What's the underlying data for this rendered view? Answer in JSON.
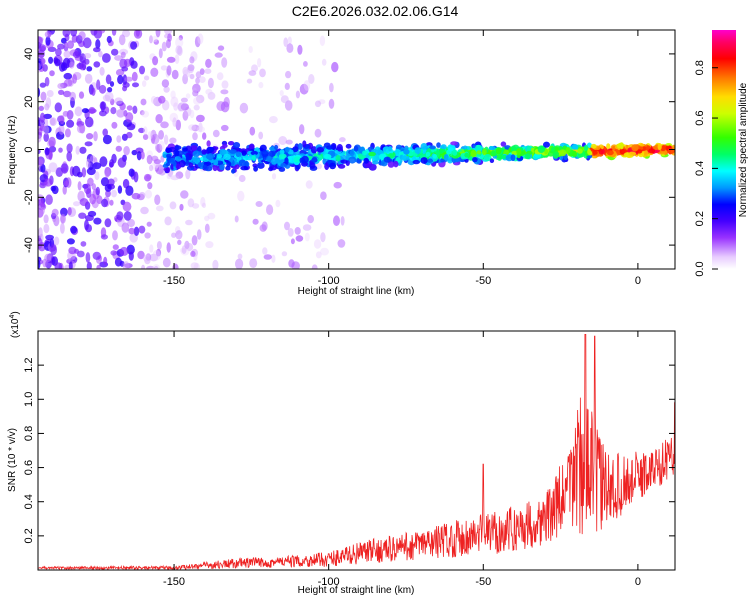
{
  "title": "C2E6.2026.032.02.06.G14",
  "colors": {
    "snr_line": "#ee2222",
    "axes": "#000000",
    "background": "#ffffff",
    "spectrogram_palette": [
      "#ffffff",
      "#e8ccff",
      "#b266ff",
      "#7b00ee",
      "#2200ff",
      "#0000ff",
      "#0099ff",
      "#00ffff",
      "#00ff44",
      "#66ff00",
      "#ffff00",
      "#ff9900",
      "#ff0000",
      "#ff0088",
      "#ff00cc"
    ]
  },
  "chart_data": [
    {
      "type": "heatmap",
      "title": "",
      "xlabel": "Height of straight line (km)",
      "ylabel": "Frequency (Hz)",
      "xlim": [
        -194,
        12
      ],
      "ylim": [
        -50,
        50
      ],
      "xticks": [
        -150,
        -100,
        -50,
        0
      ],
      "yticks": [
        -40,
        -20,
        0,
        20,
        40
      ],
      "xtick_labels": [
        "-150",
        "-100",
        "-50",
        "0"
      ],
      "ytick_labels": [
        "-40",
        "-20",
        "0",
        "20",
        "40"
      ],
      "grid": false,
      "colorbar": {
        "label": "Normalized spectral amplitude",
        "range": [
          0,
          0.95
        ],
        "ticks": [
          0,
          0.2,
          0.4,
          0.6,
          0.8
        ],
        "tick_labels": [
          "0.0",
          "0.2",
          "0.4",
          "0.6",
          "0.8"
        ]
      },
      "band": {
        "x_start": -153,
        "x_end": 12,
        "center_start_hz": -4,
        "center_end_hz": 0,
        "halfwidth_start_hz": 5,
        "halfwidth_end_hz": 1.5,
        "peak_amplitude": 0.9
      },
      "noise_region": {
        "x_start": -194,
        "x_end": -140,
        "amplitude": 0.2
      }
    },
    {
      "type": "line",
      "title": "",
      "xlabel": "Height of straight line (km)",
      "ylabel": "SNR (10 * v/v)",
      "scale_label": "(x10",
      "scale_exponent": "4",
      "scale_suffix": ")",
      "xlim": [
        -194,
        12
      ],
      "ylim": [
        0,
        1.4
      ],
      "xticks": [
        -150,
        -100,
        -50,
        0
      ],
      "yticks": [
        0.2,
        0.4,
        0.6,
        0.8,
        1.0,
        1.2
      ],
      "xtick_labels": [
        "-150",
        "-100",
        "-50",
        "0"
      ],
      "ytick_labels": [
        "0.2",
        "0.4",
        "0.6",
        "0.8",
        "1.0",
        "1.2"
      ],
      "grid": false,
      "envelope": {
        "x": [
          -194,
          -150,
          -140,
          -130,
          -110,
          -100,
          -90,
          -80,
          -70,
          -60,
          -50,
          -40,
          -30,
          -22,
          -20,
          -18,
          -15,
          -10,
          -5,
          0,
          5,
          12
        ],
        "base": [
          0.01,
          0.01,
          0.02,
          0.03,
          0.04,
          0.05,
          0.08,
          0.1,
          0.12,
          0.15,
          0.17,
          0.2,
          0.25,
          0.4,
          0.5,
          0.5,
          0.45,
          0.4,
          0.45,
          0.5,
          0.55,
          0.65
        ],
        "amp": [
          0.015,
          0.02,
          0.04,
          0.06,
          0.07,
          0.09,
          0.13,
          0.16,
          0.18,
          0.22,
          0.25,
          0.27,
          0.3,
          0.5,
          0.85,
          0.85,
          0.75,
          0.45,
          0.35,
          0.3,
          0.25,
          0.25
        ]
      },
      "notable_points": [
        {
          "x": -50,
          "y": 0.62
        },
        {
          "x": -17,
          "y": 1.38
        },
        {
          "x": -14,
          "y": 1.37
        },
        {
          "x": 12,
          "y": 0.98
        }
      ]
    }
  ]
}
